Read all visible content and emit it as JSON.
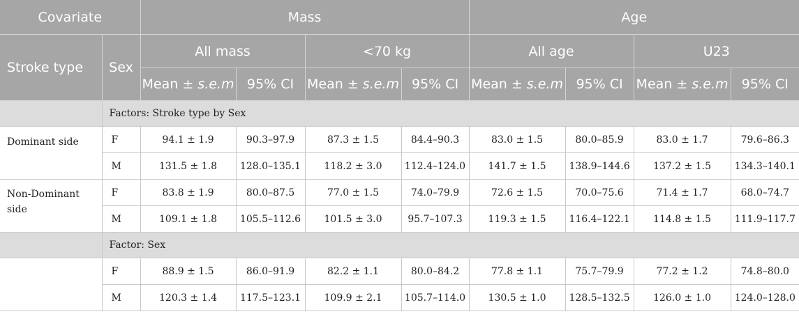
{
  "header": {
    "covariate": "Covariate",
    "mass": "Mass",
    "age": "Age",
    "stroke_type": "Stroke type",
    "sex": "Sex",
    "all_mass": "All mass",
    "under70": "<70 kg",
    "all_age": "All age",
    "u23": "U23",
    "mean_sem": "Mean ± s.e.m",
    "ci": "95% CI"
  },
  "sections": [
    {
      "title": "Factors: Stroke type by Sex",
      "groups": [
        {
          "stroke": "Dominant side",
          "rows": [
            {
              "sex": "F",
              "cells": [
                "94.1 ± 1.9",
                "90.3–97.9",
                "87.3 ± 1.5",
                "84.4–90.3",
                "83.0 ± 1.5",
                "80.0–85.9",
                "83.0 ± 1.7",
                "79.6–86.3"
              ]
            },
            {
              "sex": "M",
              "cells": [
                "131.5 ± 1.8",
                "128.0–135.1",
                "118.2 ± 3.0",
                "112.4–124.0",
                "141.7 ± 1.5",
                "138.9–144.6",
                "137.2 ± 1.5",
                "134.3–140.1"
              ]
            }
          ]
        },
        {
          "stroke": "Non-Dominant side",
          "rows": [
            {
              "sex": "F",
              "cells": [
                "83.8 ± 1.9",
                "80.0–87.5",
                "77.0 ± 1.5",
                "74.0–79.9",
                "72.6 ± 1.5",
                "70.0–75.6",
                "71.4 ± 1.7",
                "68.0–74.7"
              ]
            },
            {
              "sex": "M",
              "cells": [
                "109.1 ± 1.8",
                "105.5–112.6",
                "101.5 ± 3.0",
                "95.7–107.3",
                "119.3 ± 1.5",
                "116.4–122.1",
                "114.8 ± 1.5",
                "111.9–117.7"
              ]
            }
          ]
        }
      ]
    },
    {
      "title": "Factor: Sex",
      "groups": [
        {
          "stroke": "",
          "rows": [
            {
              "sex": "F",
              "cells": [
                "88.9 ± 1.5",
                "86.0–91.9",
                "82.2 ± 1.1",
                "80.0–84.2",
                "77.8 ± 1.1",
                "75.7–79.9",
                "77.2 ± 1.2",
                "74.8–80.0"
              ]
            },
            {
              "sex": "M",
              "cells": [
                "120.3 ± 1.4",
                "117.5–123.1",
                "109.9 ± 2.1",
                "105.7–114.0",
                "130.5 ± 1.0",
                "128.5–132.5",
                "126.0 ± 1.0",
                "124.0–128.0"
              ]
            }
          ]
        }
      ]
    }
  ]
}
